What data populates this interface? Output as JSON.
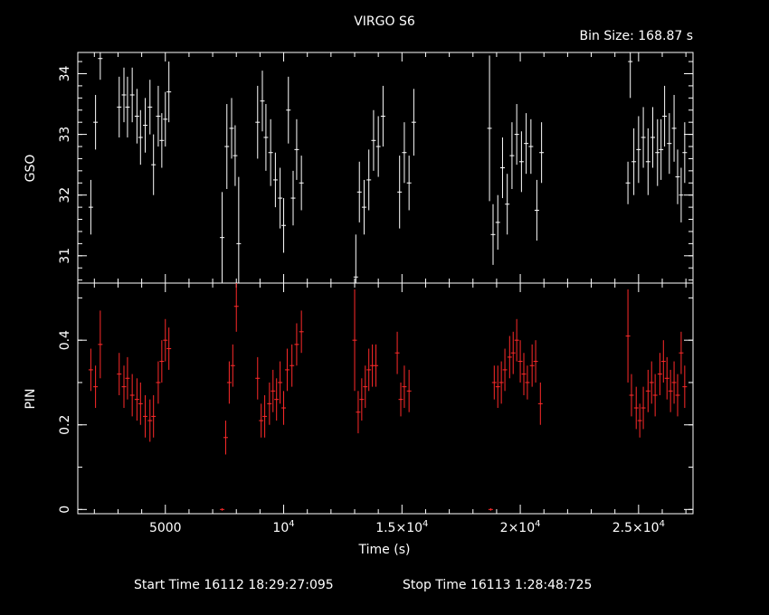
{
  "header": {
    "title": "VIRGO S6",
    "bin_size": "Bin Size: 168.87 s"
  },
  "footer": {
    "start_time": "Start Time 16112 18:29:27:095",
    "stop_time": "Stop Time 16113  1:28:48:725"
  },
  "colors": {
    "background": "#000000",
    "axes": "#ffffff",
    "gso": "#ffffff",
    "pin": "#ff2a2a"
  },
  "chart_data": {
    "type": "scatter",
    "title": "VIRGO S6",
    "xlabel": "Time (s)",
    "xlim": [
      1300,
      27300
    ],
    "xticks": [
      {
        "value": 5000,
        "label": "5000"
      },
      {
        "value": 10000,
        "label": "10",
        "exp": "4"
      },
      {
        "value": 15000,
        "label": "1.5×10",
        "exp": "4"
      },
      {
        "value": 20000,
        "label": "2×10",
        "exp": "4"
      },
      {
        "value": 25000,
        "label": "2.5×10",
        "exp": "4"
      }
    ],
    "xminor_step": 1000,
    "panels": [
      {
        "name": "GSO",
        "ylabel": "GSO",
        "ylim": [
          30.55,
          34.35
        ],
        "yticks": [
          31,
          32,
          33,
          34
        ],
        "yminor_step": 0.2,
        "color": "#ffffff",
        "points": [
          [
            1850,
            31.8,
            0.45
          ],
          [
            2050,
            33.2,
            0.45
          ],
          [
            2250,
            34.25,
            0.35
          ],
          [
            3050,
            33.45,
            0.5
          ],
          [
            3250,
            33.65,
            0.45
          ],
          [
            3400,
            33.45,
            0.5
          ],
          [
            3600,
            33.65,
            0.45
          ],
          [
            3800,
            33.3,
            0.45
          ],
          [
            3950,
            32.95,
            0.45
          ],
          [
            4150,
            33.15,
            0.45
          ],
          [
            4350,
            33.45,
            0.45
          ],
          [
            4500,
            32.5,
            0.5
          ],
          [
            4700,
            33.3,
            0.5
          ],
          [
            4850,
            32.9,
            0.45
          ],
          [
            5000,
            33.25,
            0.45
          ],
          [
            5150,
            33.7,
            0.5
          ],
          [
            7400,
            31.3,
            0.75
          ],
          [
            7600,
            32.8,
            0.7
          ],
          [
            7800,
            33.1,
            0.5
          ],
          [
            7950,
            32.65,
            0.5
          ],
          [
            8100,
            31.2,
            1.1
          ],
          [
            8900,
            33.2,
            0.6
          ],
          [
            9100,
            33.55,
            0.5
          ],
          [
            9250,
            32.95,
            0.55
          ],
          [
            9450,
            32.7,
            0.55
          ],
          [
            9650,
            32.25,
            0.45
          ],
          [
            9850,
            31.95,
            0.5
          ],
          [
            10000,
            31.5,
            0.45
          ],
          [
            10200,
            33.4,
            0.55
          ],
          [
            10400,
            31.95,
            0.45
          ],
          [
            10550,
            32.75,
            0.5
          ],
          [
            10750,
            32.2,
            0.45
          ],
          [
            13050,
            30.65,
            0.7
          ],
          [
            13200,
            32.05,
            0.5
          ],
          [
            13400,
            31.8,
            0.45
          ],
          [
            13600,
            32.25,
            0.5
          ],
          [
            13800,
            32.9,
            0.5
          ],
          [
            14000,
            32.8,
            0.5
          ],
          [
            14200,
            33.3,
            0.5
          ],
          [
            14900,
            32.05,
            0.6
          ],
          [
            15100,
            32.7,
            0.5
          ],
          [
            15300,
            32.2,
            0.45
          ],
          [
            15500,
            33.2,
            0.55
          ],
          [
            18700,
            33.1,
            1.2
          ],
          [
            18850,
            31.35,
            0.5
          ],
          [
            19050,
            31.55,
            0.45
          ],
          [
            19250,
            32.45,
            0.5
          ],
          [
            19450,
            31.85,
            0.5
          ],
          [
            19650,
            32.65,
            0.55
          ],
          [
            19850,
            33.0,
            0.5
          ],
          [
            20050,
            32.55,
            0.5
          ],
          [
            20250,
            32.85,
            0.5
          ],
          [
            20450,
            32.8,
            0.45
          ],
          [
            20700,
            31.75,
            0.5
          ],
          [
            20900,
            32.7,
            0.5
          ],
          [
            24550,
            32.2,
            0.35
          ],
          [
            24650,
            34.2,
            0.6
          ],
          [
            24800,
            32.55,
            0.55
          ],
          [
            25000,
            32.75,
            0.55
          ],
          [
            25200,
            32.95,
            0.5
          ],
          [
            25400,
            32.55,
            0.55
          ],
          [
            25600,
            32.95,
            0.5
          ],
          [
            25800,
            32.7,
            0.55
          ],
          [
            25950,
            32.75,
            0.5
          ],
          [
            26100,
            33.3,
            0.5
          ],
          [
            26300,
            32.85,
            0.5
          ],
          [
            26500,
            33.1,
            0.55
          ],
          [
            26650,
            32.3,
            0.45
          ],
          [
            26800,
            32.0,
            0.45
          ],
          [
            26950,
            32.7,
            0.5
          ]
        ]
      },
      {
        "name": "PIN",
        "ylabel": "PIN",
        "ylim": [
          -0.01,
          0.535
        ],
        "yticks": [
          0,
          0.2,
          0.4
        ],
        "ytick_labels": [
          "0",
          "0.2",
          "0.4"
        ],
        "yminor_step": 0.1,
        "color": "#ff2a2a",
        "points": [
          [
            1850,
            0.33,
            0.05
          ],
          [
            2050,
            0.29,
            0.05
          ],
          [
            2250,
            0.39,
            0.08
          ],
          [
            3050,
            0.32,
            0.05
          ],
          [
            3250,
            0.29,
            0.05
          ],
          [
            3400,
            0.31,
            0.05
          ],
          [
            3600,
            0.27,
            0.05
          ],
          [
            3800,
            0.26,
            0.05
          ],
          [
            3950,
            0.25,
            0.05
          ],
          [
            4150,
            0.22,
            0.05
          ],
          [
            4350,
            0.21,
            0.05
          ],
          [
            4500,
            0.22,
            0.05
          ],
          [
            4700,
            0.3,
            0.05
          ],
          [
            4850,
            0.35,
            0.05
          ],
          [
            5000,
            0.4,
            0.05
          ],
          [
            5150,
            0.38,
            0.05
          ],
          [
            7400,
            0.0,
            0.003
          ],
          [
            7550,
            0.17,
            0.04
          ],
          [
            7700,
            0.3,
            0.05
          ],
          [
            7850,
            0.34,
            0.05
          ],
          [
            8000,
            0.48,
            0.06
          ],
          [
            8900,
            0.31,
            0.05
          ],
          [
            9050,
            0.21,
            0.04
          ],
          [
            9200,
            0.22,
            0.05
          ],
          [
            9400,
            0.25,
            0.05
          ],
          [
            9550,
            0.28,
            0.05
          ],
          [
            9700,
            0.26,
            0.05
          ],
          [
            9850,
            0.3,
            0.05
          ],
          [
            10000,
            0.24,
            0.04
          ],
          [
            10150,
            0.33,
            0.05
          ],
          [
            10350,
            0.34,
            0.05
          ],
          [
            10550,
            0.39,
            0.05
          ],
          [
            10750,
            0.42,
            0.05
          ],
          [
            13000,
            0.4,
            0.12
          ],
          [
            13150,
            0.23,
            0.05
          ],
          [
            13300,
            0.26,
            0.05
          ],
          [
            13450,
            0.29,
            0.05
          ],
          [
            13600,
            0.33,
            0.05
          ],
          [
            13750,
            0.34,
            0.05
          ],
          [
            13900,
            0.34,
            0.05
          ],
          [
            14800,
            0.37,
            0.05
          ],
          [
            14950,
            0.26,
            0.04
          ],
          [
            15100,
            0.29,
            0.05
          ],
          [
            15300,
            0.28,
            0.05
          ],
          [
            18750,
            0.0,
            0.003
          ],
          [
            18900,
            0.3,
            0.04
          ],
          [
            19050,
            0.29,
            0.05
          ],
          [
            19200,
            0.3,
            0.05
          ],
          [
            19350,
            0.33,
            0.05
          ],
          [
            19550,
            0.36,
            0.05
          ],
          [
            19700,
            0.37,
            0.05
          ],
          [
            19850,
            0.4,
            0.05
          ],
          [
            20000,
            0.35,
            0.05
          ],
          [
            20150,
            0.32,
            0.05
          ],
          [
            20300,
            0.3,
            0.04
          ],
          [
            20500,
            0.34,
            0.05
          ],
          [
            20650,
            0.35,
            0.05
          ],
          [
            20850,
            0.25,
            0.05
          ],
          [
            24550,
            0.41,
            0.11
          ],
          [
            24700,
            0.27,
            0.05
          ],
          [
            24900,
            0.24,
            0.05
          ],
          [
            25050,
            0.21,
            0.04
          ],
          [
            25200,
            0.24,
            0.05
          ],
          [
            25400,
            0.28,
            0.05
          ],
          [
            25550,
            0.3,
            0.05
          ],
          [
            25700,
            0.27,
            0.05
          ],
          [
            25900,
            0.32,
            0.05
          ],
          [
            26050,
            0.35,
            0.05
          ],
          [
            26200,
            0.31,
            0.05
          ],
          [
            26350,
            0.28,
            0.05
          ],
          [
            26500,
            0.3,
            0.05
          ],
          [
            26650,
            0.27,
            0.05
          ],
          [
            26800,
            0.37,
            0.05
          ],
          [
            26950,
            0.29,
            0.05
          ]
        ]
      }
    ]
  }
}
